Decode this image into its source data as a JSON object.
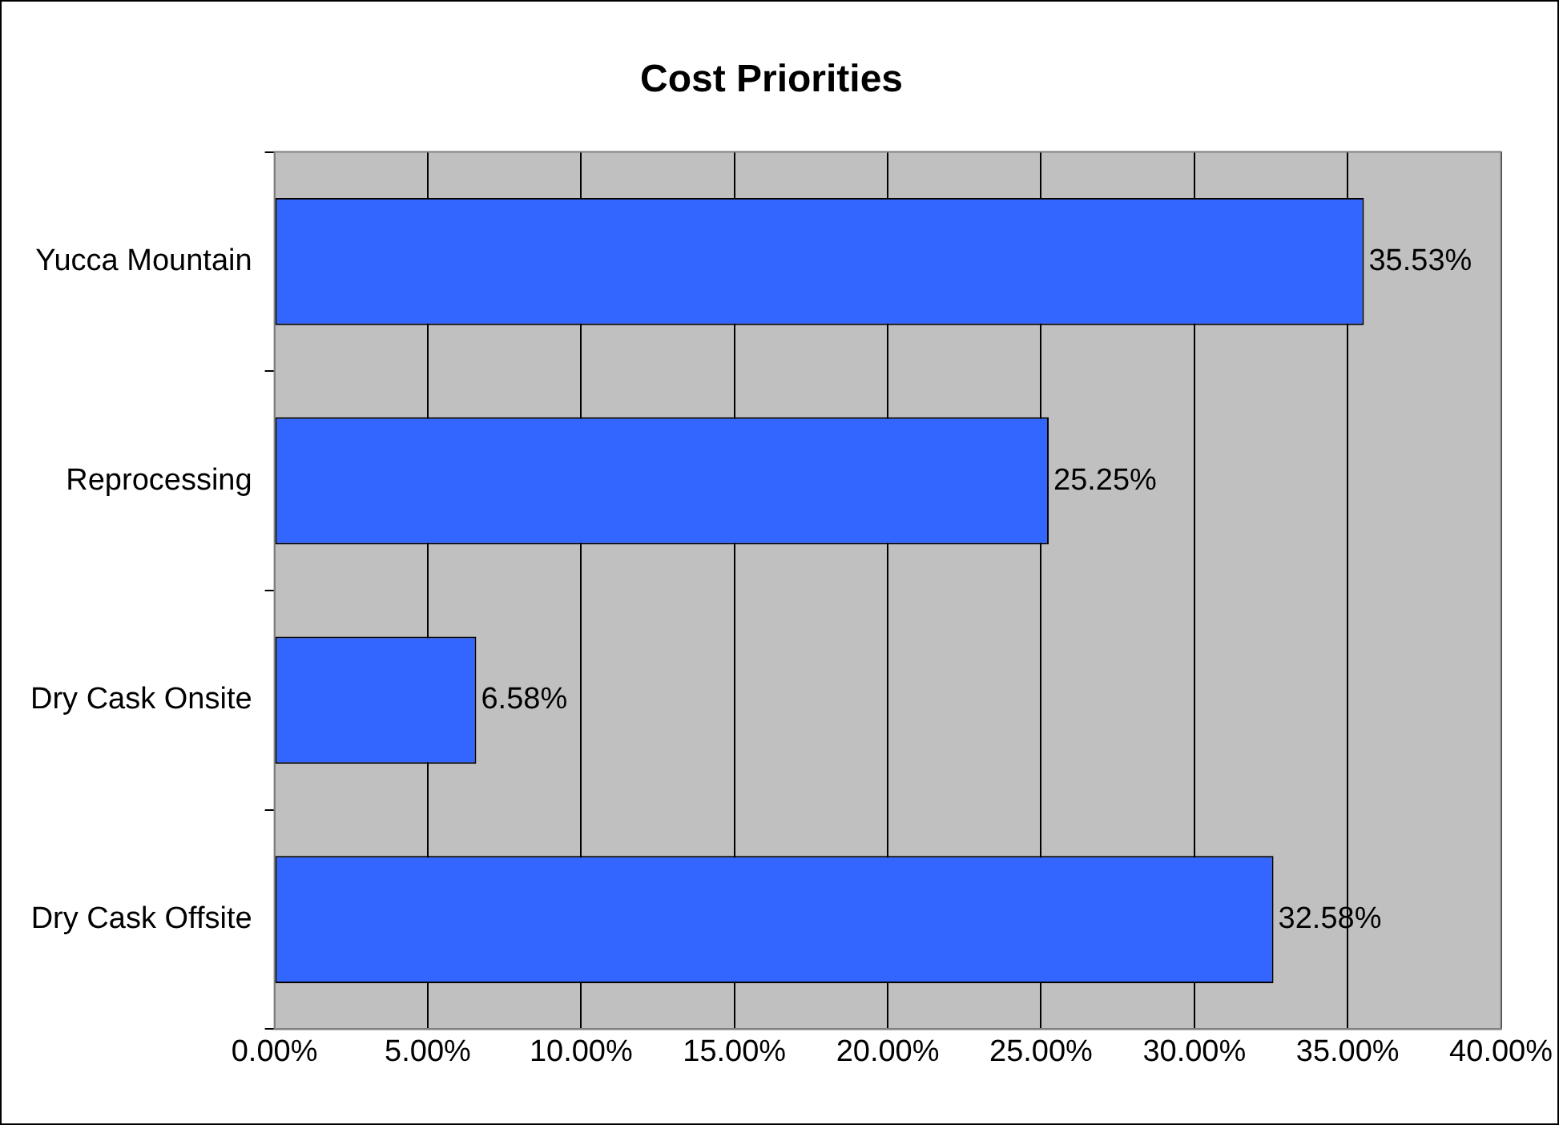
{
  "chart_data": {
    "type": "bar",
    "title": "Cost Priorities",
    "orientation": "horizontal",
    "categories": [
      "Yucca Mountain",
      "Reprocessing",
      "Dry Cask Onsite",
      "Dry Cask Offsite"
    ],
    "values": [
      35.53,
      25.25,
      6.58,
      32.58
    ],
    "value_labels": [
      "35.53%",
      "25.25%",
      "6.58%",
      "32.58%"
    ],
    "color": "#3366ff",
    "xlim": [
      0,
      40
    ],
    "xticks": [
      {
        "value": 0,
        "label": "0.00%"
      },
      {
        "value": 5,
        "label": "5.00%"
      },
      {
        "value": 10,
        "label": "10.00%"
      },
      {
        "value": 15,
        "label": "15.00%"
      },
      {
        "value": 20,
        "label": "20.00%"
      },
      {
        "value": 25,
        "label": "25.00%"
      },
      {
        "value": 30,
        "label": "30.00%"
      },
      {
        "value": 35,
        "label": "35.00%"
      },
      {
        "value": 40,
        "label": "40.00%"
      }
    ],
    "grid": "x",
    "legend": false
  }
}
